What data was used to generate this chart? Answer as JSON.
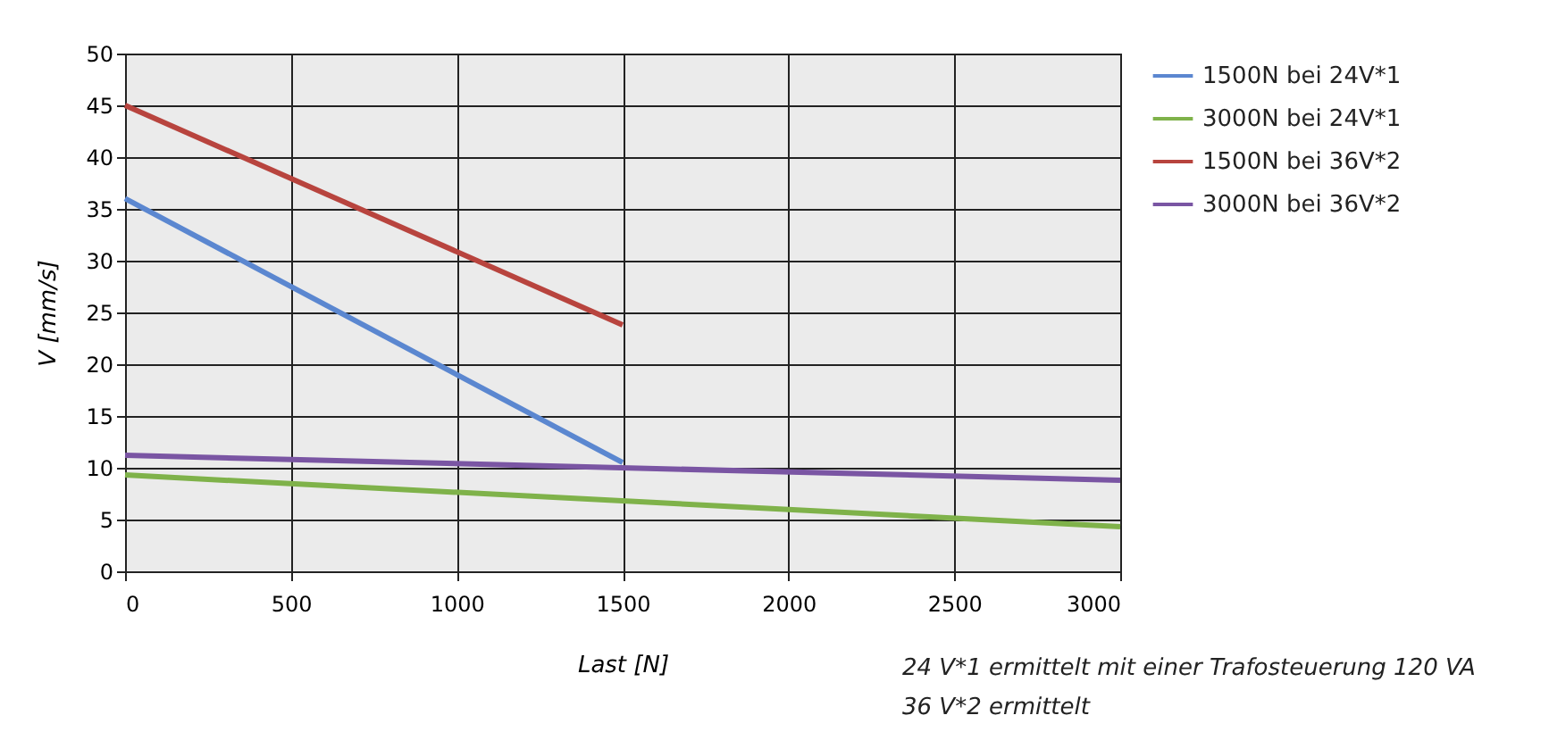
{
  "chart_data": {
    "type": "line",
    "xlabel": "Last [N]",
    "ylabel": "V [mm/s]",
    "xlim": [
      0,
      3000
    ],
    "xticks": [
      0,
      500,
      1000,
      1500,
      2000,
      2500,
      3000
    ],
    "ylim": [
      0,
      50
    ],
    "yticks": [
      0,
      5,
      10,
      15,
      20,
      25,
      30,
      35,
      40,
      45,
      50
    ],
    "grid": true,
    "legend": "right",
    "marker": "none",
    "line_style": "solid",
    "series": [
      {
        "name": "1500N bei 24V*1",
        "color": "#5b87d0",
        "x": [
          0,
          1500
        ],
        "values": [
          36,
          10.5
        ]
      },
      {
        "name": "3000N bei 24V*1",
        "color": "#7fb24a",
        "x": [
          0,
          3000
        ],
        "values": [
          9.3,
          4.3
        ]
      },
      {
        "name": "1500N bei 36V*2",
        "color": "#b8443e",
        "x": [
          0,
          1500
        ],
        "values": [
          45,
          23.8
        ]
      },
      {
        "name": "3000N bei 36V*2",
        "color": "#7a55a3",
        "x": [
          0,
          3000
        ],
        "values": [
          11.2,
          8.8
        ]
      }
    ],
    "annotations": [
      "24 V*1 ermittelt mit einer Trafosteuerung 120 VA",
      "36 V*2 ermittelt"
    ]
  }
}
